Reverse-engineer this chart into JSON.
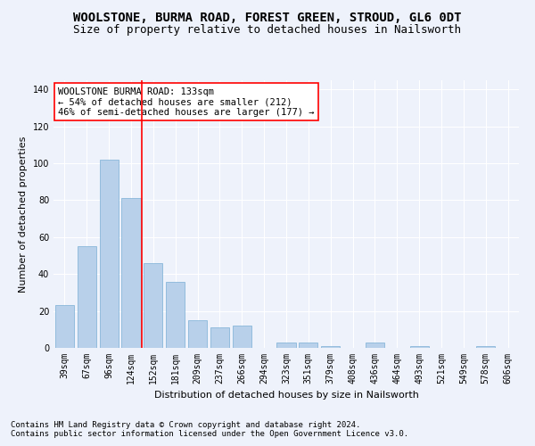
{
  "title": "WOOLSTONE, BURMA ROAD, FOREST GREEN, STROUD, GL6 0DT",
  "subtitle": "Size of property relative to detached houses in Nailsworth",
  "xlabel": "Distribution of detached houses by size in Nailsworth",
  "ylabel": "Number of detached properties",
  "categories": [
    "39sqm",
    "67sqm",
    "96sqm",
    "124sqm",
    "152sqm",
    "181sqm",
    "209sqm",
    "237sqm",
    "266sqm",
    "294sqm",
    "323sqm",
    "351sqm",
    "379sqm",
    "408sqm",
    "436sqm",
    "464sqm",
    "493sqm",
    "521sqm",
    "549sqm",
    "578sqm",
    "606sqm"
  ],
  "values": [
    23,
    55,
    102,
    81,
    46,
    36,
    15,
    11,
    12,
    0,
    3,
    3,
    1,
    0,
    3,
    0,
    1,
    0,
    0,
    1,
    0
  ],
  "bar_color": "#b8d0ea",
  "bar_edge_color": "#7aafd4",
  "vline_x": 3.5,
  "vline_color": "red",
  "annotation_text": "WOOLSTONE BURMA ROAD: 133sqm\n← 54% of detached houses are smaller (212)\n46% of semi-detached houses are larger (177) →",
  "annotation_box_color": "white",
  "annotation_box_edge": "red",
  "ylim": [
    0,
    145
  ],
  "yticks": [
    0,
    20,
    40,
    60,
    80,
    100,
    120,
    140
  ],
  "footnote1": "Contains HM Land Registry data © Crown copyright and database right 2024.",
  "footnote2": "Contains public sector information licensed under the Open Government Licence v3.0.",
  "bg_color": "#eef2fb",
  "grid_color": "white",
  "title_fontsize": 10,
  "subtitle_fontsize": 9,
  "ylabel_fontsize": 8,
  "xlabel_fontsize": 8,
  "tick_fontsize": 7,
  "annotation_fontsize": 7.5,
  "footnote_fontsize": 6.5
}
